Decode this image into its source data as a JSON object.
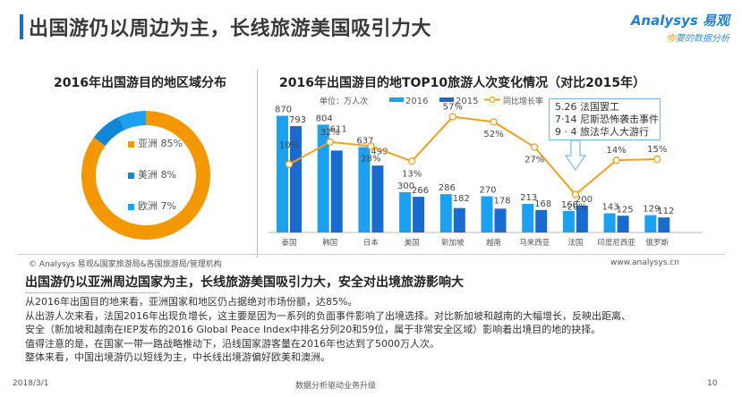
{
  "header": {
    "title": "出国游仍以周边为主，长线旅游美国吸引力大",
    "logo_brand": "Analysys 易观",
    "logo_tagline_first": "你",
    "logo_tagline_rest": "要的数据分析"
  },
  "colors": {
    "orange": "#f39800",
    "blue_2016": "#1ba1f0",
    "blue_2015": "#1a6bd0",
    "mid_blue": "#0f86d8",
    "line": "#f0a020"
  },
  "chart_data": [
    {
      "type": "pie",
      "title": "2016年出国游目的地区域分布",
      "categories": [
        "亚洲",
        "美洲",
        "欧洲"
      ],
      "values": [
        85,
        8,
        7
      ],
      "labels": [
        "亚洲 85%",
        "美洲 8%",
        "欧洲 7%"
      ],
      "legend": "center"
    },
    {
      "type": "bar",
      "title": "2016年出国游目的地TOP10旅游人次变化情况（对比2015年）",
      "unit_label": "单位：万人次",
      "categories": [
        "泰国",
        "韩国",
        "日本",
        "美国",
        "新加坡",
        "越南",
        "马来西亚",
        "法国",
        "印度尼西亚",
        "俄罗斯"
      ],
      "series": [
        {
          "name": "2016",
          "values": [
            870,
            804,
            637,
            300,
            286,
            270,
            213,
            160,
            143,
            129
          ]
        },
        {
          "name": "2015",
          "values": [
            793,
            611,
            499,
            266,
            182,
            178,
            168,
            200,
            125,
            112
          ]
        },
        {
          "name": "同比增长率",
          "type": "line",
          "values": [
            10,
            32,
            28,
            13,
            57,
            52,
            27,
            -20,
            14,
            15
          ],
          "labels": [
            "10%",
            "32%",
            "28%",
            "13%",
            "57%",
            "52%",
            "27%",
            "-20%",
            "14%",
            "15%"
          ]
        }
      ],
      "legend": "top",
      "annotation": [
        "5.26  法国罢工",
        "7·14  尼斯恐怖袭击事件",
        "9 · 4  旅法华人大游行"
      ]
    }
  ],
  "source": "© Analysys 易观&国家旅游局&各国旅游局/管理机构",
  "url": "www.analysys.cn",
  "summary": {
    "title": "出国游仍以亚洲周边国家为主，长线旅游美国吸引力大，安全对出境旅游影响大",
    "paragraphs": [
      "从2016年出国目的地来看，亚洲国家和地区仍占据绝对市场份额，达85%。",
      "从出游人次来看，法国2016年出现负增长，这主要是因为一系列的负面事件影响了出境选择。对比新加坡和越南的大幅增长，反映出距离、",
      "安全（新加坡和越南在IEP发布的2016 Global Peace Index中排名分列20和59位，属于非常安全区域）影响着出境目的地的抉择。",
      "值得注意的是，在国家一带一路战略推动下，沿线国家游客量在2016年也达到了5000万人次。",
      "整体来看，中国出境游仍以短线为主，中长线出境游偏好欧美和澳洲。"
    ]
  },
  "footer": {
    "date": "2018/3/1",
    "center": "数据分析驱动业务升级",
    "page": "10"
  }
}
